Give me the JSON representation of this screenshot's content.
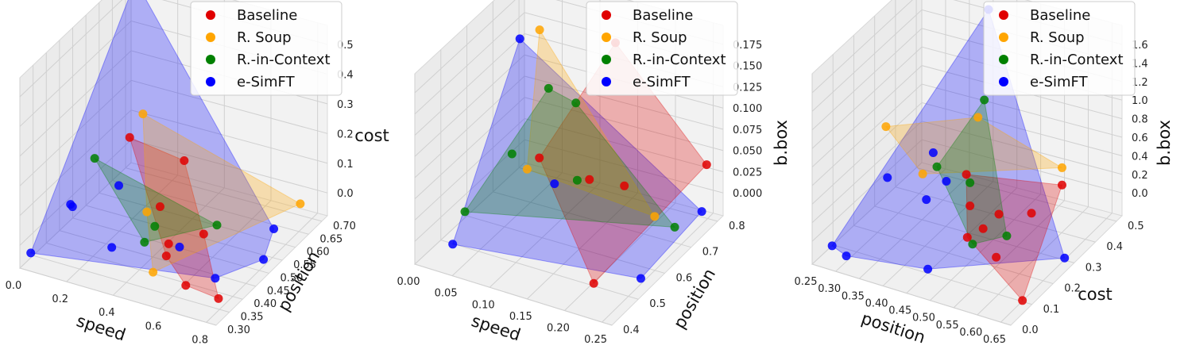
{
  "chart_data": [
    {
      "type": "scatter",
      "subtype": "3d-scatter-with-convex-hulls",
      "title": "",
      "xlabel": "speed",
      "ylabel": "position",
      "zlabel": "cost",
      "x_ticks": [
        "0.0",
        "0.2",
        "0.4",
        "0.6",
        "0.8"
      ],
      "y_ticks": [
        "0.30",
        "0.35",
        "0.40",
        "0.45",
        "0.50",
        "0.55",
        "0.60",
        "0.65",
        "0.70"
      ],
      "z_ticks": [
        "0.0",
        "0.1",
        "0.2",
        "0.3",
        "0.4",
        "0.5"
      ],
      "xlim": [
        0.0,
        0.9
      ],
      "ylim": [
        0.3,
        0.72
      ],
      "zlim": [
        0.0,
        0.52
      ],
      "legend": [
        "Baseline",
        "R. Soup",
        "R.-in-Context",
        "e-SimFT"
      ],
      "legend_position": "top-right",
      "series": [
        {
          "name": "e-SimFT",
          "color": "#0000ff",
          "points": [
            [
              0.02,
              0.72,
              0.5
            ],
            [
              0.05,
              0.45,
              0.08
            ],
            [
              0.12,
              0.4,
              0.12
            ],
            [
              0.15,
              0.55,
              0.08
            ],
            [
              0.05,
              0.3,
              0.05
            ],
            [
              0.55,
              0.45,
              0.05
            ],
            [
              0.75,
              0.42,
              0.02
            ],
            [
              0.8,
              0.6,
              0.04
            ],
            [
              0.85,
              0.52,
              0.02
            ],
            [
              0.3,
              0.4,
              0.04
            ]
          ]
        },
        {
          "name": "Baseline",
          "color": "#e00000",
          "points": [
            [
              0.2,
              0.55,
              0.22
            ],
            [
              0.45,
              0.55,
              0.2
            ],
            [
              0.5,
              0.45,
              0.05
            ],
            [
              0.6,
              0.5,
              0.06
            ],
            [
              0.55,
              0.4,
              0.06
            ],
            [
              0.85,
              0.35,
              0.03
            ],
            [
              0.7,
              0.35,
              0.04
            ],
            [
              0.4,
              0.5,
              0.1
            ]
          ]
        },
        {
          "name": "R. Soup",
          "color": "#ffa500",
          "points": [
            [
              0.2,
              0.6,
              0.25
            ],
            [
              0.55,
              0.35,
              0.05
            ],
            [
              0.8,
              0.7,
              0.04
            ],
            [
              0.4,
              0.45,
              0.12
            ]
          ]
        },
        {
          "name": "R.-in-Context",
          "color": "#008000",
          "points": [
            [
              0.1,
              0.5,
              0.18
            ],
            [
              0.4,
              0.48,
              0.06
            ],
            [
              0.6,
              0.55,
              0.05
            ],
            [
              0.45,
              0.4,
              0.08
            ]
          ]
        }
      ]
    },
    {
      "type": "scatter",
      "subtype": "3d-scatter-with-convex-hulls",
      "title": "",
      "xlabel": "speed",
      "ylabel": "position",
      "zlabel": "b.box",
      "x_ticks": [
        "0.00",
        "0.05",
        "0.10",
        "0.15",
        "0.20",
        "0.25"
      ],
      "y_ticks": [
        "0.4",
        "0.5",
        "0.6",
        "0.7",
        "0.8"
      ],
      "z_ticks": [
        "0.000",
        "0.025",
        "0.050",
        "0.075",
        "0.100",
        "0.125",
        "0.150",
        "0.175"
      ],
      "xlim": [
        0.0,
        0.26
      ],
      "ylim": [
        0.4,
        0.85
      ],
      "zlim": [
        0.0,
        0.18
      ],
      "legend": [
        "Baseline",
        "R. Soup",
        "R.-in-Context",
        "e-SimFT"
      ],
      "legend_position": "top-right",
      "series": [
        {
          "name": "e-SimFT",
          "color": "#0000ff",
          "points": [
            [
              0.01,
              0.8,
              0.13
            ],
            [
              0.05,
              0.4,
              0.03
            ],
            [
              0.25,
              0.8,
              0.02
            ],
            [
              0.25,
              0.55,
              0.01
            ],
            [
              0.12,
              0.6,
              0.06
            ]
          ]
        },
        {
          "name": "Baseline",
          "color": "#e00000",
          "points": [
            [
              0.12,
              0.85,
              0.14
            ],
            [
              0.25,
              0.82,
              0.06
            ],
            [
              0.22,
              0.45,
              0.02
            ],
            [
              0.15,
              0.65,
              0.06
            ],
            [
              0.1,
              0.6,
              0.08
            ],
            [
              0.18,
              0.7,
              0.05
            ]
          ]
        },
        {
          "name": "R. Soup",
          "color": "#ffa500",
          "points": [
            [
              0.02,
              0.85,
              0.13
            ],
            [
              0.22,
              0.7,
              0.03
            ],
            [
              0.1,
              0.55,
              0.08
            ]
          ]
        },
        {
          "name": "R.-in-Context",
          "color": "#008000",
          "points": [
            [
              0.08,
              0.7,
              0.12
            ],
            [
              0.1,
              0.75,
              0.1
            ],
            [
              0.05,
              0.45,
              0.05
            ],
            [
              0.24,
              0.72,
              0.02
            ],
            [
              0.15,
              0.6,
              0.07
            ],
            [
              0.08,
              0.55,
              0.09
            ]
          ]
        }
      ]
    },
    {
      "type": "scatter",
      "subtype": "3d-scatter-with-convex-hulls",
      "title": "",
      "xlabel": "position",
      "ylabel": "cost",
      "zlabel": "b.box",
      "x_ticks": [
        "0.25",
        "0.30",
        "0.35",
        "0.40",
        "0.45",
        "0.50",
        "0.55",
        "0.60",
        "0.65"
      ],
      "y_ticks": [
        "0.0",
        "0.1",
        "0.2",
        "0.3",
        "0.4",
        "0.5"
      ],
      "z_ticks": [
        "0.0",
        "0.2",
        "0.4",
        "0.6",
        "0.8",
        "1.0",
        "1.2",
        "1.4",
        "1.6"
      ],
      "xlim": [
        0.25,
        0.67
      ],
      "ylim": [
        0.0,
        0.52
      ],
      "zlim": [
        0.0,
        1.65
      ],
      "legend": [
        "Baseline",
        "R. Soup",
        "R.-in-Context",
        "e-SimFT"
      ],
      "legend_position": "top-right",
      "series": [
        {
          "name": "e-SimFT",
          "color": "#0000ff",
          "points": [
            [
              0.4,
              0.5,
              1.55
            ],
            [
              0.27,
              0.05,
              0.1
            ],
            [
              0.3,
              0.05,
              0.05
            ],
            [
              0.65,
              0.3,
              0.05
            ],
            [
              0.45,
              0.1,
              0.04
            ],
            [
              0.35,
              0.35,
              0.5
            ],
            [
              0.4,
              0.3,
              0.4
            ],
            [
              0.38,
              0.25,
              0.3
            ],
            [
              0.32,
              0.2,
              0.5
            ]
          ]
        },
        {
          "name": "Baseline",
          "color": "#e00000",
          "points": [
            [
              0.65,
              0.1,
              0.02
            ],
            [
              0.55,
              0.2,
              0.1
            ],
            [
              0.5,
              0.25,
              0.2
            ],
            [
              0.45,
              0.3,
              0.25
            ],
            [
              0.48,
              0.22,
              0.15
            ],
            [
              0.52,
              0.28,
              0.3
            ],
            [
              0.42,
              0.35,
              0.4
            ],
            [
              0.58,
              0.3,
              0.35
            ],
            [
              0.6,
              0.4,
              0.45
            ]
          ]
        },
        {
          "name": "R. Soup",
          "color": "#ffa500",
          "points": [
            [
              0.25,
              0.35,
              0.6
            ],
            [
              0.6,
              0.4,
              0.6
            ],
            [
              0.4,
              0.45,
              0.7
            ],
            [
              0.35,
              0.3,
              0.4
            ]
          ]
        },
        {
          "name": "R.-in-Context",
          "color": "#008000",
          "points": [
            [
              0.4,
              0.48,
              0.8
            ],
            [
              0.45,
              0.3,
              0.45
            ],
            [
              0.55,
              0.25,
              0.2
            ],
            [
              0.5,
              0.2,
              0.15
            ],
            [
              0.38,
              0.3,
              0.5
            ]
          ]
        }
      ]
    }
  ]
}
